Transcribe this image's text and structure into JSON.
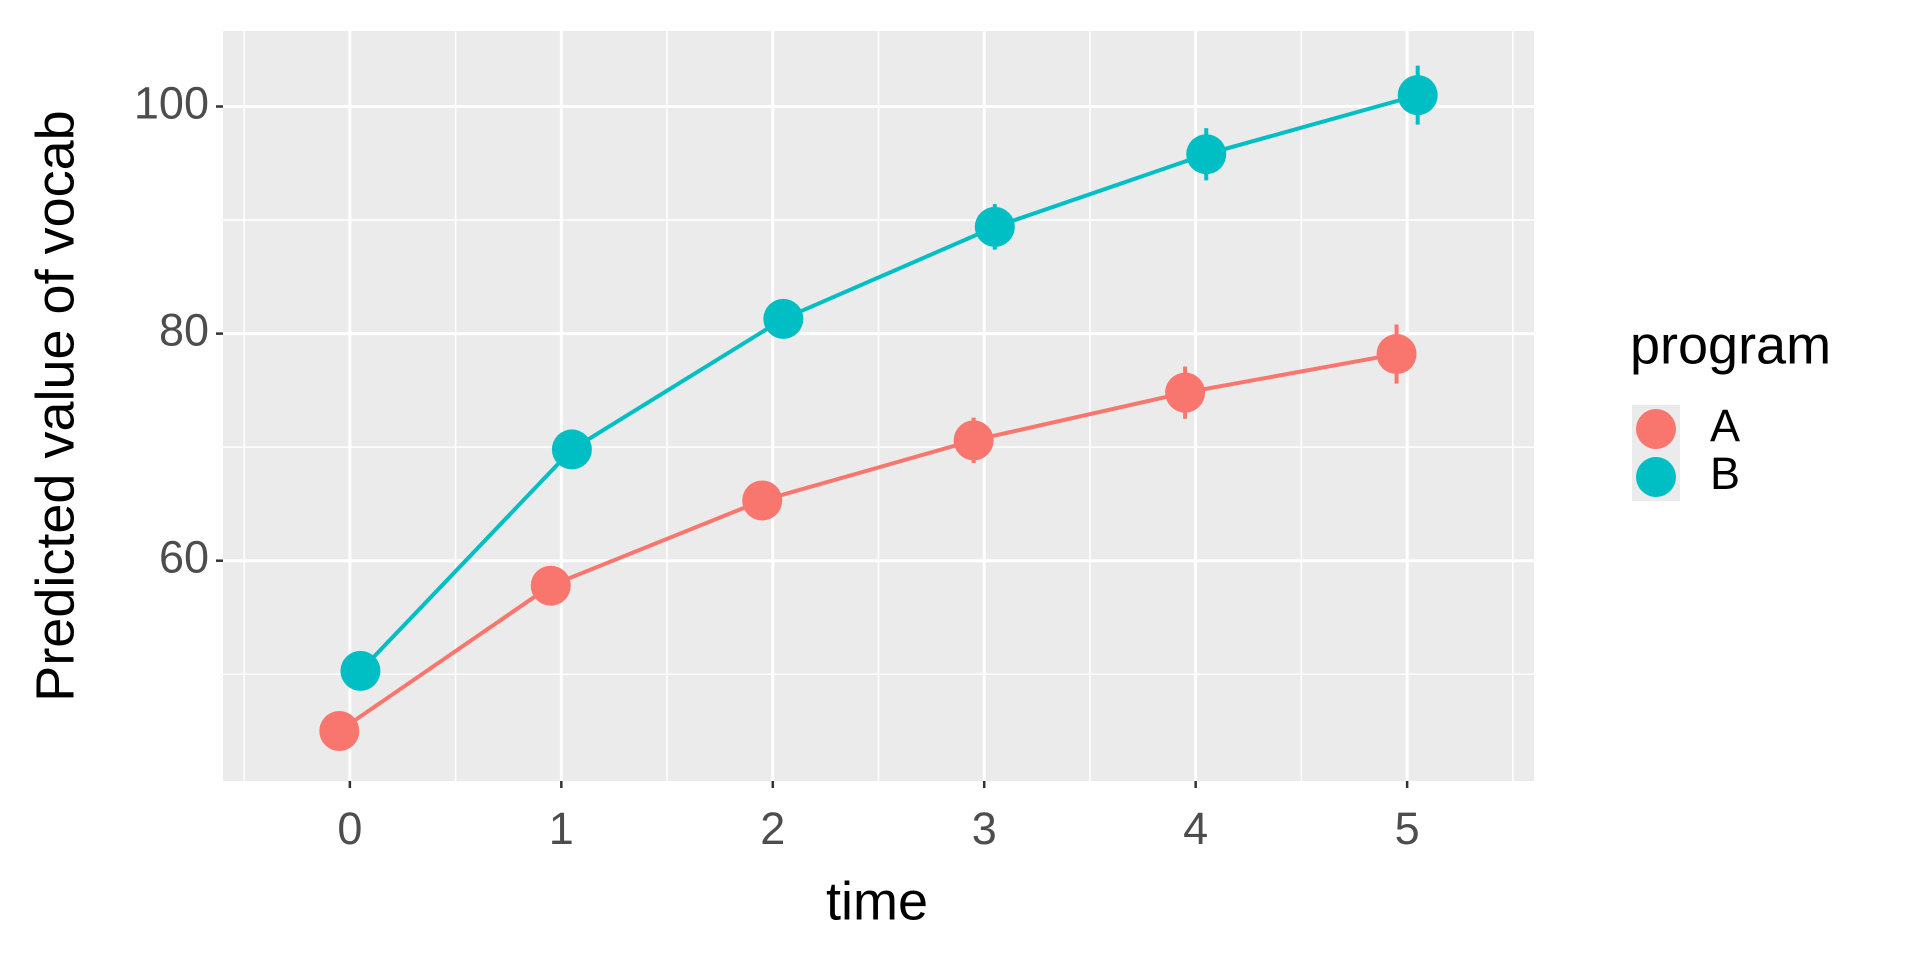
{
  "chart_data": {
    "type": "line",
    "x_label": "time",
    "y_label": "Predicted value of vocab",
    "legend_title": "program",
    "legend_position": "right",
    "x": [
      0,
      1,
      2,
      3,
      4,
      5
    ],
    "series": [
      {
        "name": "A",
        "color": "#f8766d",
        "values": [
          45.0,
          57.8,
          65.3,
          70.6,
          74.8,
          78.2
        ],
        "errors": [
          1.2,
          1.2,
          1.4,
          2.0,
          2.3,
          2.6
        ]
      },
      {
        "name": "B",
        "color": "#00bfc4",
        "values": [
          50.3,
          69.8,
          81.3,
          89.4,
          95.8,
          101.0
        ],
        "errors": [
          1.2,
          1.2,
          1.4,
          2.0,
          2.3,
          2.6
        ]
      }
    ],
    "xlim": [
      -0.6,
      5.6
    ],
    "xticks": [
      0,
      1,
      2,
      3,
      4,
      5
    ],
    "ylim": [
      40.6,
      106.65
    ],
    "yticks": [
      60,
      80,
      100
    ],
    "grid": true
  }
}
